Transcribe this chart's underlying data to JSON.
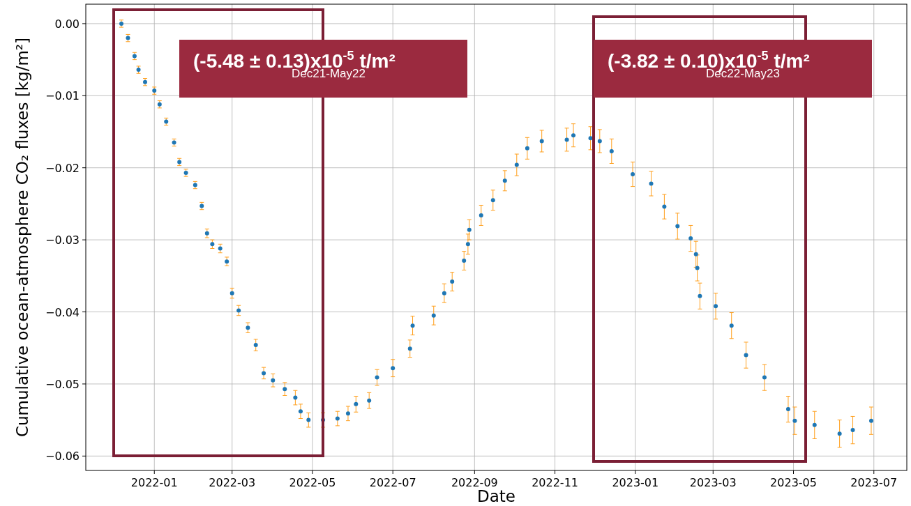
{
  "chart_data": {
    "type": "scatter",
    "xlabel": "Date",
    "ylabel": "Cumulative ocean-atmosphere CO₂ fluxes [kg/m²]",
    "annotations": [
      "(-5.48 ± 0.13)x10$^{-5}$ t/m²",
      "Dec21-May22",
      "(-3.82 ± 0.10)x10$^{-5}$ t/m²",
      "Dec22-May23"
    ],
    "xlim": [
      "2021-11-10",
      "2023-07-26"
    ],
    "xticks": [
      {
        "value": "2022-01-01",
        "label": "2022-01"
      },
      {
        "value": "2022-03-01",
        "label": "2022-03"
      },
      {
        "value": "2022-05-01",
        "label": "2022-05"
      },
      {
        "value": "2022-07-01",
        "label": "2022-07"
      },
      {
        "value": "2022-09-01",
        "label": "2022-09"
      },
      {
        "value": "2022-11-01",
        "label": "2022-11"
      },
      {
        "value": "2023-01-01",
        "label": "2023-01"
      },
      {
        "value": "2023-03-01",
        "label": "2023-03"
      },
      {
        "value": "2023-05-01",
        "label": "2023-05"
      },
      {
        "value": "2023-07-01",
        "label": "2023-07"
      }
    ],
    "ylim": [
      -0.062,
      0.0027
    ],
    "yticks": [
      {
        "value": 0,
        "label": "0.00"
      },
      {
        "value": -0.01,
        "label": "−0.01"
      },
      {
        "value": -0.02,
        "label": "−0.02"
      },
      {
        "value": -0.03,
        "label": "−0.03"
      },
      {
        "value": -0.04,
        "label": "−0.04"
      },
      {
        "value": -0.05,
        "label": "−0.05"
      },
      {
        "value": -0.06,
        "label": "−0.06"
      }
    ],
    "grid": true,
    "marker": "circle",
    "series": [
      {
        "color": "#1f77b4",
        "x": [
          "2021-12-07",
          "2021-12-12",
          "2021-12-17",
          "2021-12-20",
          "2021-12-25",
          "2022-01-01",
          "2022-01-05",
          "2022-01-10",
          "2022-01-16",
          "2022-01-20",
          "2022-01-25",
          "2022-02-01",
          "2022-02-06",
          "2022-02-10",
          "2022-02-14",
          "2022-02-20",
          "2022-02-25",
          "2022-03-01",
          "2022-03-06",
          "2022-03-13",
          "2022-03-19",
          "2022-03-25",
          "2022-04-01",
          "2022-04-10",
          "2022-04-18",
          "2022-04-22",
          "2022-04-28",
          "2022-05-09",
          "2022-05-20",
          "2022-05-28",
          "2022-06-03",
          "2022-06-13",
          "2022-06-19",
          "2022-07-01",
          "2022-07-14",
          "2022-07-16",
          "2022-08-01",
          "2022-08-09",
          "2022-08-15",
          "2022-08-24",
          "2022-08-27",
          "2022-08-28",
          "2022-09-06",
          "2022-09-15",
          "2022-09-24",
          "2022-10-03",
          "2022-10-11",
          "2022-10-22",
          "2022-11-10",
          "2022-11-15",
          "2022-11-28",
          "2022-12-05",
          "2022-12-14",
          "2022-12-30",
          "2023-01-13",
          "2023-01-23",
          "2023-02-02",
          "2023-02-12",
          "2023-02-16",
          "2023-02-17",
          "2023-02-19",
          "2023-03-03",
          "2023-03-15",
          "2023-03-26",
          "2023-04-09",
          "2023-04-27",
          "2023-05-02",
          "2023-05-17",
          "2023-06-05",
          "2023-06-15",
          "2023-06-29"
        ],
        "values": [
          0,
          -0.002,
          -0.0045,
          -0.0064,
          -0.0081,
          -0.0093,
          -0.0112,
          -0.0136,
          -0.0165,
          -0.0192,
          -0.0207,
          -0.0224,
          -0.0253,
          -0.0291,
          -0.0306,
          -0.0312,
          -0.033,
          -0.0374,
          -0.0398,
          -0.0422,
          -0.0446,
          -0.0485,
          -0.0495,
          -0.0507,
          -0.0519,
          -0.0538,
          -0.055,
          -0.055,
          -0.0548,
          -0.0541,
          -0.0528,
          -0.0523,
          -0.0491,
          -0.0478,
          -0.0451,
          -0.0419,
          -0.0405,
          -0.0374,
          -0.0358,
          -0.0329,
          -0.0306,
          -0.0286,
          -0.0266,
          -0.0245,
          -0.0218,
          -0.0196,
          -0.0173,
          -0.0163,
          -0.0161,
          -0.0155,
          -0.0159,
          -0.0163,
          -0.0177,
          -0.0209,
          -0.0222,
          -0.0254,
          -0.0281,
          -0.0298,
          -0.032,
          -0.0339,
          -0.0378,
          -0.0392,
          -0.0419,
          -0.046,
          -0.0491,
          -0.0535,
          -0.0551,
          -0.0557,
          -0.0569,
          -0.0564,
          -0.0551
        ],
        "errors": [
          0.0005,
          0.0005,
          0.0005,
          0.0005,
          0.0005,
          0.0005,
          0.0005,
          0.0005,
          0.0005,
          0.0005,
          0.0005,
          0.0005,
          0.0005,
          0.0006,
          0.0006,
          0.0006,
          0.0006,
          0.0007,
          0.0007,
          0.0007,
          0.0008,
          0.0008,
          0.0009,
          0.0009,
          0.001,
          0.001,
          0.001,
          0.001,
          0.001,
          0.001,
          0.0011,
          0.0011,
          0.0011,
          0.0012,
          0.0012,
          0.0013,
          0.0013,
          0.0013,
          0.0013,
          0.0013,
          0.0014,
          0.0014,
          0.0014,
          0.0014,
          0.0014,
          0.0015,
          0.0015,
          0.0015,
          0.0016,
          0.0016,
          0.0016,
          0.0016,
          0.0017,
          0.0017,
          0.0017,
          0.0017,
          0.0018,
          0.0018,
          0.0018,
          0.0018,
          0.0018,
          0.0018,
          0.0018,
          0.0018,
          0.0018,
          0.0018,
          0.0019,
          0.0019,
          0.0019,
          0.0019,
          0.0019
        ]
      }
    ]
  }
}
